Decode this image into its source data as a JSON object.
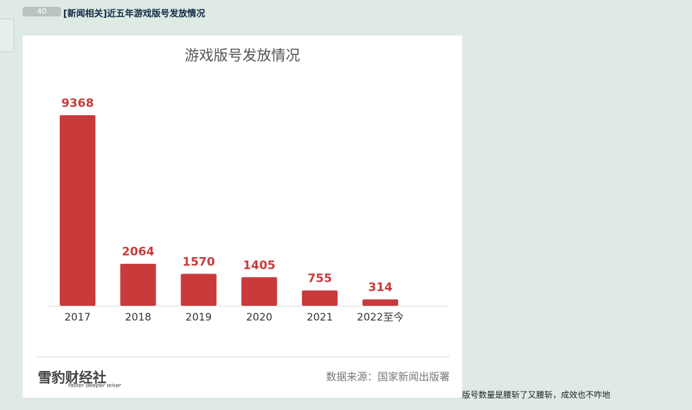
{
  "post": {
    "votes": "40",
    "title": "[新闻相关]近五年游戏版号发放情况",
    "caption": "版号数量是腰斩了又腰斩，成效也不咋地"
  },
  "chart_data": {
    "type": "bar",
    "title": "游戏版号发放情况",
    "categories": [
      "2017",
      "2018",
      "2019",
      "2020",
      "2021",
      "2022至今"
    ],
    "values": [
      9368,
      2064,
      1570,
      1405,
      755,
      314
    ],
    "color": "#c93a3b",
    "source": "数据来源：国家新闻出版署",
    "brand": "雪豹财经社",
    "brand_slogan": "faster deeper wiser"
  }
}
